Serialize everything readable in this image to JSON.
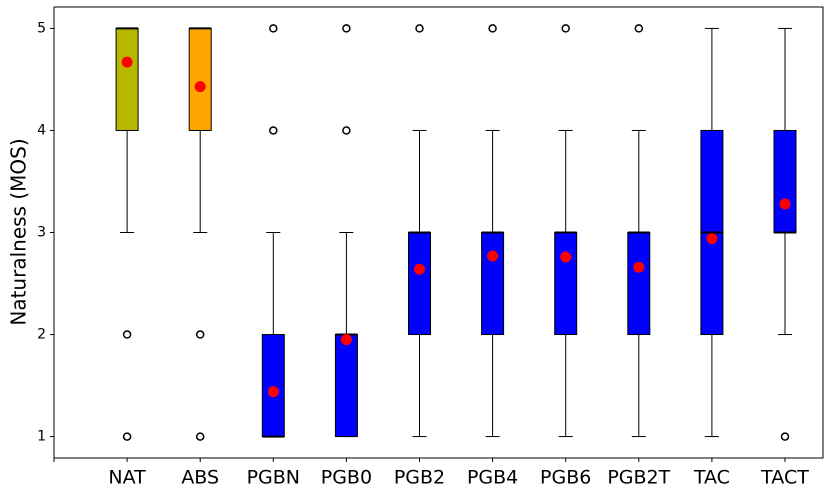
{
  "chart_data": {
    "type": "box",
    "y_label": "Naturalness (MOS)",
    "categories": [
      null,
      "NAT",
      "ABS",
      "PGBN",
      "PGB0",
      "PGB2",
      "PGB4",
      "PGB6",
      "PGB2T",
      "TAC",
      "TACT"
    ],
    "boxes": [
      null,
      {
        "whislo": 3,
        "q1": 4,
        "med": 5,
        "q3": 5,
        "whishi": 5,
        "mean": 4.67,
        "fliers": [
          1,
          2
        ],
        "color": "#b8b800"
      },
      {
        "whislo": 3,
        "q1": 4,
        "med": 5,
        "q3": 5,
        "whishi": 5,
        "mean": 4.43,
        "fliers": [
          1,
          2
        ],
        "color": "#ffa500"
      },
      {
        "whislo": 1,
        "q1": 1,
        "med": 1,
        "q3": 2,
        "whishi": 3,
        "mean": 1.44,
        "fliers": [
          4,
          5
        ],
        "color": "#0000ff"
      },
      {
        "whislo": 1,
        "q1": 1,
        "med": 2,
        "q3": 2,
        "whishi": 3,
        "mean": 1.95,
        "fliers": [
          4,
          5
        ],
        "color": "#0000ff"
      },
      {
        "whislo": 1,
        "q1": 2,
        "med": 3,
        "q3": 3,
        "whishi": 4,
        "mean": 2.64,
        "fliers": [
          5
        ],
        "color": "#0000ff"
      },
      {
        "whislo": 1,
        "q1": 2,
        "med": 3,
        "q3": 3,
        "whishi": 4,
        "mean": 2.77,
        "fliers": [
          5
        ],
        "color": "#0000ff"
      },
      {
        "whislo": 1,
        "q1": 2,
        "med": 3,
        "q3": 3,
        "whishi": 4,
        "mean": 2.76,
        "fliers": [
          5
        ],
        "color": "#0000ff"
      },
      {
        "whislo": 1,
        "q1": 2,
        "med": 3,
        "q3": 3,
        "whishi": 4,
        "mean": 2.66,
        "fliers": [
          5
        ],
        "color": "#0000ff"
      },
      {
        "whislo": 1,
        "q1": 2,
        "med": 3,
        "q3": 4,
        "whishi": 5,
        "mean": 2.94,
        "fliers": [],
        "color": "#0000ff"
      },
      {
        "whislo": 2,
        "q1": 3,
        "med": 3,
        "q3": 4,
        "whishi": 5,
        "mean": 3.28,
        "fliers": [
          1
        ],
        "color": "#0000ff"
      }
    ],
    "mean_color": "#ff0000",
    "ylim": [
      0.79,
      5.21
    ],
    "yticks": [
      1,
      2,
      3,
      4,
      5
    ]
  }
}
